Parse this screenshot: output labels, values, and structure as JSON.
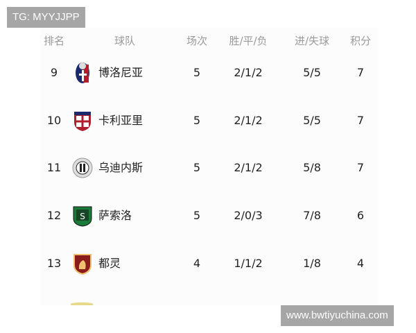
{
  "watermarks": {
    "top_left": "TG: MYYJJPP",
    "bottom_right": "www.bwtiyuchina.com"
  },
  "headers": {
    "rank": "排名",
    "team": "球队",
    "played": "场次",
    "wdl": "胜/平/负",
    "goals": "进/失球",
    "points": "积分"
  },
  "rows": [
    {
      "rank": "9",
      "team": "博洛尼亚",
      "played": "5",
      "wdl": "2/1/2",
      "goals": "5/5",
      "points": "7",
      "logo": "bologna-crest",
      "colors": [
        "#1a2a6c",
        "#b01e2e"
      ]
    },
    {
      "rank": "10",
      "team": "卡利亚里",
      "played": "5",
      "wdl": "2/1/2",
      "goals": "5/5",
      "points": "7",
      "logo": "cagliari-crest",
      "colors": [
        "#b01e2e",
        "#1a2a6c"
      ]
    },
    {
      "rank": "11",
      "team": "乌迪内斯",
      "played": "5",
      "wdl": "2/1/2",
      "goals": "5/8",
      "points": "7",
      "logo": "udinese-crest",
      "colors": [
        "#222222",
        "#dddddd"
      ]
    },
    {
      "rank": "12",
      "team": "萨索洛",
      "played": "5",
      "wdl": "2/0/3",
      "goals": "7/8",
      "points": "6",
      "logo": "sassuolo-crest",
      "colors": [
        "#1a7a3a",
        "#111111"
      ]
    },
    {
      "rank": "13",
      "team": "都灵",
      "played": "4",
      "wdl": "1/1/2",
      "goals": "1/8",
      "points": "4",
      "logo": "torino-crest",
      "colors": [
        "#8a1c1c",
        "#f0c070"
      ]
    }
  ]
}
